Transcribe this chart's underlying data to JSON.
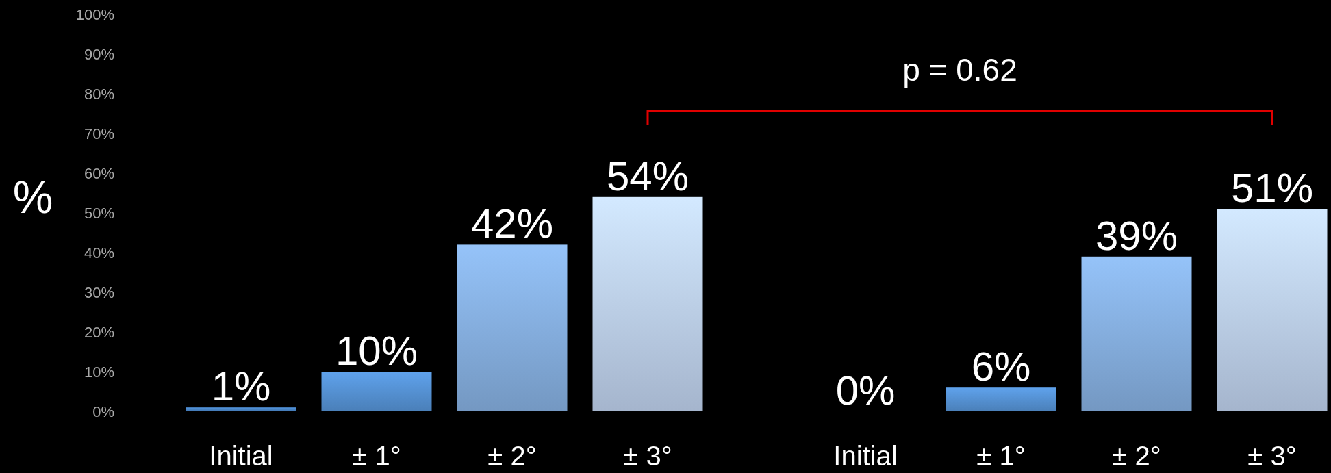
{
  "chart_data": {
    "type": "bar",
    "ylabel": "%",
    "categories": [
      "Initial",
      "± 1°",
      "± 2°",
      "± 3°",
      "Initial",
      "± 1°",
      "± 2°",
      "± 3°"
    ],
    "values": [
      1,
      10,
      42,
      54,
      0,
      6,
      39,
      51
    ],
    "colors": [
      "#4a86c8",
      "#5592d4",
      "#86afe0",
      "#bed1ec",
      "#4a86c8",
      "#5592d4",
      "#86afe0",
      "#bed1ec"
    ],
    "value_labels": [
      "1%",
      "10%",
      "42%",
      "54%",
      "0%",
      "6%",
      "39%",
      "51%"
    ],
    "ylim": [
      0,
      100
    ],
    "yticks": [
      {
        "value": 0,
        "label": "0%"
      },
      {
        "value": 10,
        "label": "10%"
      },
      {
        "value": 20,
        "label": "20%"
      },
      {
        "value": 30,
        "label": "30%"
      },
      {
        "value": 40,
        "label": "40%"
      },
      {
        "value": 50,
        "label": "50%"
      },
      {
        "value": 60,
        "label": "60%"
      },
      {
        "value": 70,
        "label": "70%"
      },
      {
        "value": 80,
        "label": "80%"
      },
      {
        "value": 90,
        "label": "90%"
      },
      {
        "value": 100,
        "label": "100%"
      }
    ],
    "annotations": [
      "p = 0.62"
    ],
    "grid": false
  }
}
